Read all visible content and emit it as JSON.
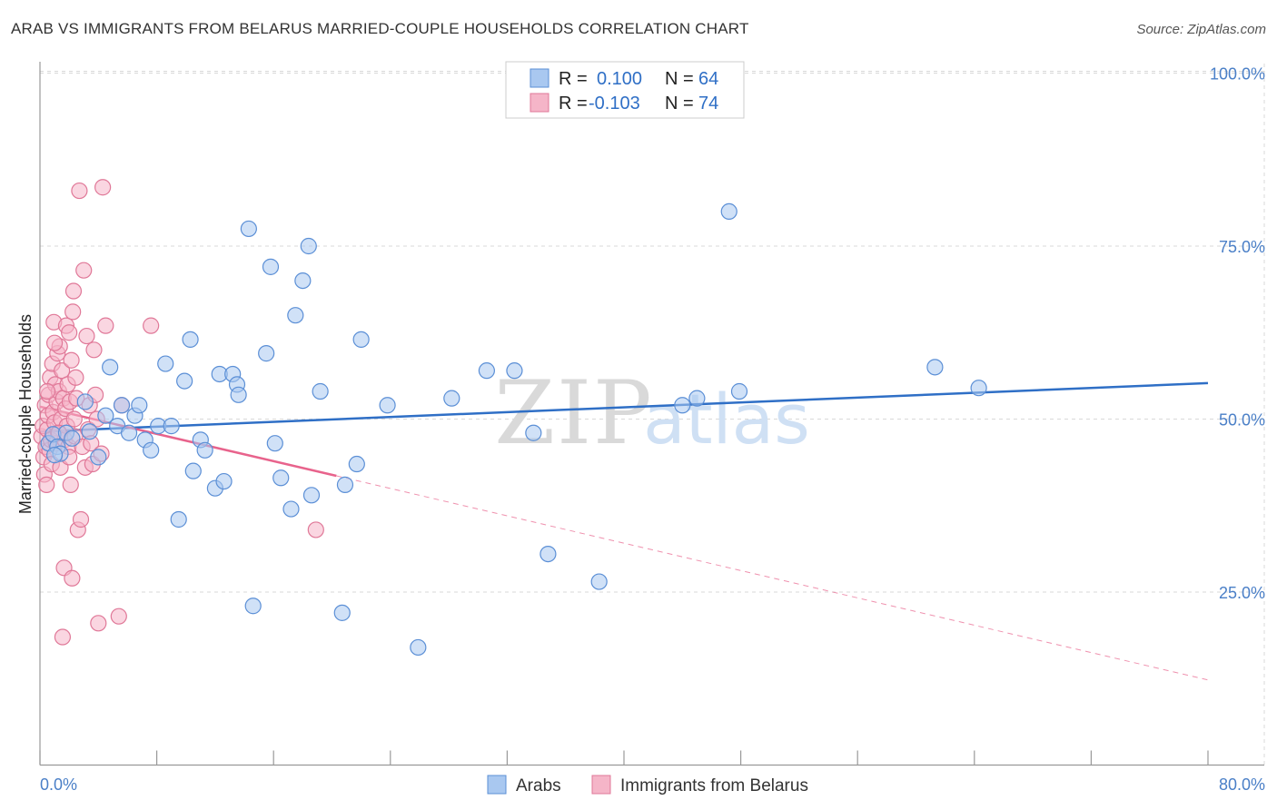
{
  "title": "ARAB VS IMMIGRANTS FROM BELARUS MARRIED-COUPLE HOUSEHOLDS CORRELATION CHART",
  "source": "Source: ZipAtlas.com",
  "watermark": {
    "zip": "ZIP",
    "atlas": "atlas"
  },
  "colors": {
    "blue_fill": "#a9c8f0",
    "blue_stroke": "#5b8fd6",
    "blue_line": "#2f6fc6",
    "pink_fill": "#f5b5c8",
    "pink_stroke": "#e07898",
    "pink_line": "#e8638c",
    "grid": "#d8d8d8",
    "axis_text": "#4a7fc7"
  },
  "legend": {
    "r_label": "R =",
    "n_label": "N =",
    "rows": [
      {
        "series": "Arabs",
        "r": "0.100",
        "n": "64"
      },
      {
        "series": "Immigrants from Belarus",
        "r": "-0.103",
        "n": "74"
      }
    ]
  },
  "chart_data": {
    "type": "scatter",
    "title": "ARAB VS IMMIGRANTS FROM BELARUS MARRIED-COUPLE HOUSEHOLDS CORRELATION CHART",
    "xlabel": "",
    "ylabel": "Married-couple Households",
    "xlim": [
      0,
      80
    ],
    "ylim": [
      0,
      105
    ],
    "x_tick_labels": [
      "0.0%",
      "80.0%"
    ],
    "y_ticks": [
      25,
      50,
      75,
      100
    ],
    "y_tick_labels": [
      "25.0%",
      "50.0%",
      "75.0%",
      "100.0%"
    ],
    "grid": true,
    "legend_position": "bottom",
    "series": [
      {
        "name": "Arabs",
        "color": "#a9c8f0",
        "trend": {
          "x": [
            0,
            80
          ],
          "y": [
            48.2,
            55.2
          ]
        },
        "points": [
          [
            0.6,
            46.5
          ],
          [
            0.9,
            47.8
          ],
          [
            1.2,
            46.0
          ],
          [
            1.4,
            45.0
          ],
          [
            1.8,
            48.0
          ],
          [
            2.2,
            47.2
          ],
          [
            3.1,
            52.5
          ],
          [
            3.4,
            48.2
          ],
          [
            4.0,
            44.5
          ],
          [
            4.5,
            50.5
          ],
          [
            4.8,
            57.5
          ],
          [
            5.3,
            49.0
          ],
          [
            5.6,
            52.0
          ],
          [
            6.1,
            48.0
          ],
          [
            6.5,
            50.5
          ],
          [
            6.8,
            52.0
          ],
          [
            7.2,
            47.0
          ],
          [
            7.6,
            45.5
          ],
          [
            8.1,
            49.0
          ],
          [
            8.6,
            58.0
          ],
          [
            9.0,
            49.0
          ],
          [
            9.5,
            35.5
          ],
          [
            9.9,
            55.5
          ],
          [
            10.3,
            61.5
          ],
          [
            10.5,
            42.5
          ],
          [
            11.0,
            47.0
          ],
          [
            11.3,
            45.5
          ],
          [
            12.0,
            40.0
          ],
          [
            12.3,
            56.5
          ],
          [
            12.6,
            41.0
          ],
          [
            13.2,
            56.5
          ],
          [
            13.5,
            55.0
          ],
          [
            13.6,
            53.5
          ],
          [
            14.3,
            77.5
          ],
          [
            14.6,
            23.0
          ],
          [
            15.5,
            59.5
          ],
          [
            15.8,
            72.0
          ],
          [
            16.1,
            46.5
          ],
          [
            16.5,
            41.5
          ],
          [
            17.2,
            37.0
          ],
          [
            17.5,
            65.0
          ],
          [
            18.0,
            70.0
          ],
          [
            18.4,
            75.0
          ],
          [
            18.6,
            39.0
          ],
          [
            19.2,
            54.0
          ],
          [
            20.7,
            22.0
          ],
          [
            20.9,
            40.5
          ],
          [
            21.7,
            43.5
          ],
          [
            22.0,
            61.5
          ],
          [
            23.8,
            52.0
          ],
          [
            25.9,
            17.0
          ],
          [
            28.2,
            53.0
          ],
          [
            30.6,
            57.0
          ],
          [
            32.5,
            57.0
          ],
          [
            33.8,
            48.0
          ],
          [
            34.8,
            30.5
          ],
          [
            38.3,
            26.5
          ],
          [
            44.0,
            52.0
          ],
          [
            45.0,
            53.0
          ],
          [
            47.2,
            80.0
          ],
          [
            47.9,
            54.0
          ],
          [
            61.3,
            57.5
          ],
          [
            64.3,
            54.5
          ],
          [
            1.0,
            44.8
          ]
        ]
      },
      {
        "name": "Immigrants from Belarus",
        "color": "#f5b5c8",
        "trend": {
          "x": [
            0,
            20.3
          ],
          "y": [
            51.8,
            41.8
          ]
        },
        "trend_extension": {
          "x": [
            20.3,
            80
          ],
          "y": [
            41.8,
            12.3
          ]
        },
        "points": [
          [
            0.1,
            47.5
          ],
          [
            0.2,
            49.0
          ],
          [
            0.25,
            44.5
          ],
          [
            0.3,
            42.0
          ],
          [
            0.35,
            52.0
          ],
          [
            0.4,
            46.0
          ],
          [
            0.45,
            40.5
          ],
          [
            0.5,
            48.5
          ],
          [
            0.55,
            50.5
          ],
          [
            0.6,
            53.5
          ],
          [
            0.65,
            45.5
          ],
          [
            0.7,
            56.0
          ],
          [
            0.75,
            47.0
          ],
          [
            0.8,
            43.5
          ],
          [
            0.85,
            58.0
          ],
          [
            0.9,
            51.0
          ],
          [
            0.95,
            64.0
          ],
          [
            1.0,
            49.5
          ],
          [
            1.05,
            55.0
          ],
          [
            1.1,
            46.5
          ],
          [
            1.15,
            52.5
          ],
          [
            1.2,
            59.5
          ],
          [
            1.25,
            48.0
          ],
          [
            1.3,
            54.0
          ],
          [
            1.35,
            60.5
          ],
          [
            1.4,
            43.0
          ],
          [
            1.45,
            50.0
          ],
          [
            1.5,
            57.0
          ],
          [
            1.55,
            18.5
          ],
          [
            1.6,
            53.0
          ],
          [
            1.65,
            28.5
          ],
          [
            1.7,
            47.0
          ],
          [
            1.75,
            51.5
          ],
          [
            1.8,
            63.5
          ],
          [
            1.85,
            49.0
          ],
          [
            1.9,
            55.0
          ],
          [
            1.95,
            46.0
          ],
          [
            2.0,
            62.5
          ],
          [
            2.05,
            52.5
          ],
          [
            2.1,
            40.5
          ],
          [
            2.15,
            58.5
          ],
          [
            2.2,
            27.0
          ],
          [
            2.25,
            65.5
          ],
          [
            2.3,
            68.5
          ],
          [
            2.35,
            50.0
          ],
          [
            2.4,
            47.5
          ],
          [
            2.45,
            56.0
          ],
          [
            2.5,
            53.0
          ],
          [
            2.6,
            34.0
          ],
          [
            2.7,
            83.0
          ],
          [
            2.8,
            35.5
          ],
          [
            2.9,
            46.0
          ],
          [
            3.0,
            71.5
          ],
          [
            3.1,
            43.0
          ],
          [
            3.2,
            62.0
          ],
          [
            3.3,
            48.5
          ],
          [
            3.4,
            52.0
          ],
          [
            3.5,
            46.5
          ],
          [
            3.6,
            43.5
          ],
          [
            3.7,
            60.0
          ],
          [
            3.8,
            53.5
          ],
          [
            3.9,
            50.0
          ],
          [
            4.0,
            20.5
          ],
          [
            4.2,
            45.0
          ],
          [
            4.3,
            83.5
          ],
          [
            4.5,
            63.5
          ],
          [
            5.4,
            21.5
          ],
          [
            5.6,
            52.0
          ],
          [
            7.6,
            63.5
          ],
          [
            18.9,
            34.0
          ],
          [
            0.5,
            54.0
          ],
          [
            1.0,
            61.0
          ],
          [
            2.0,
            44.5
          ],
          [
            1.3,
            48.0
          ]
        ]
      }
    ]
  }
}
